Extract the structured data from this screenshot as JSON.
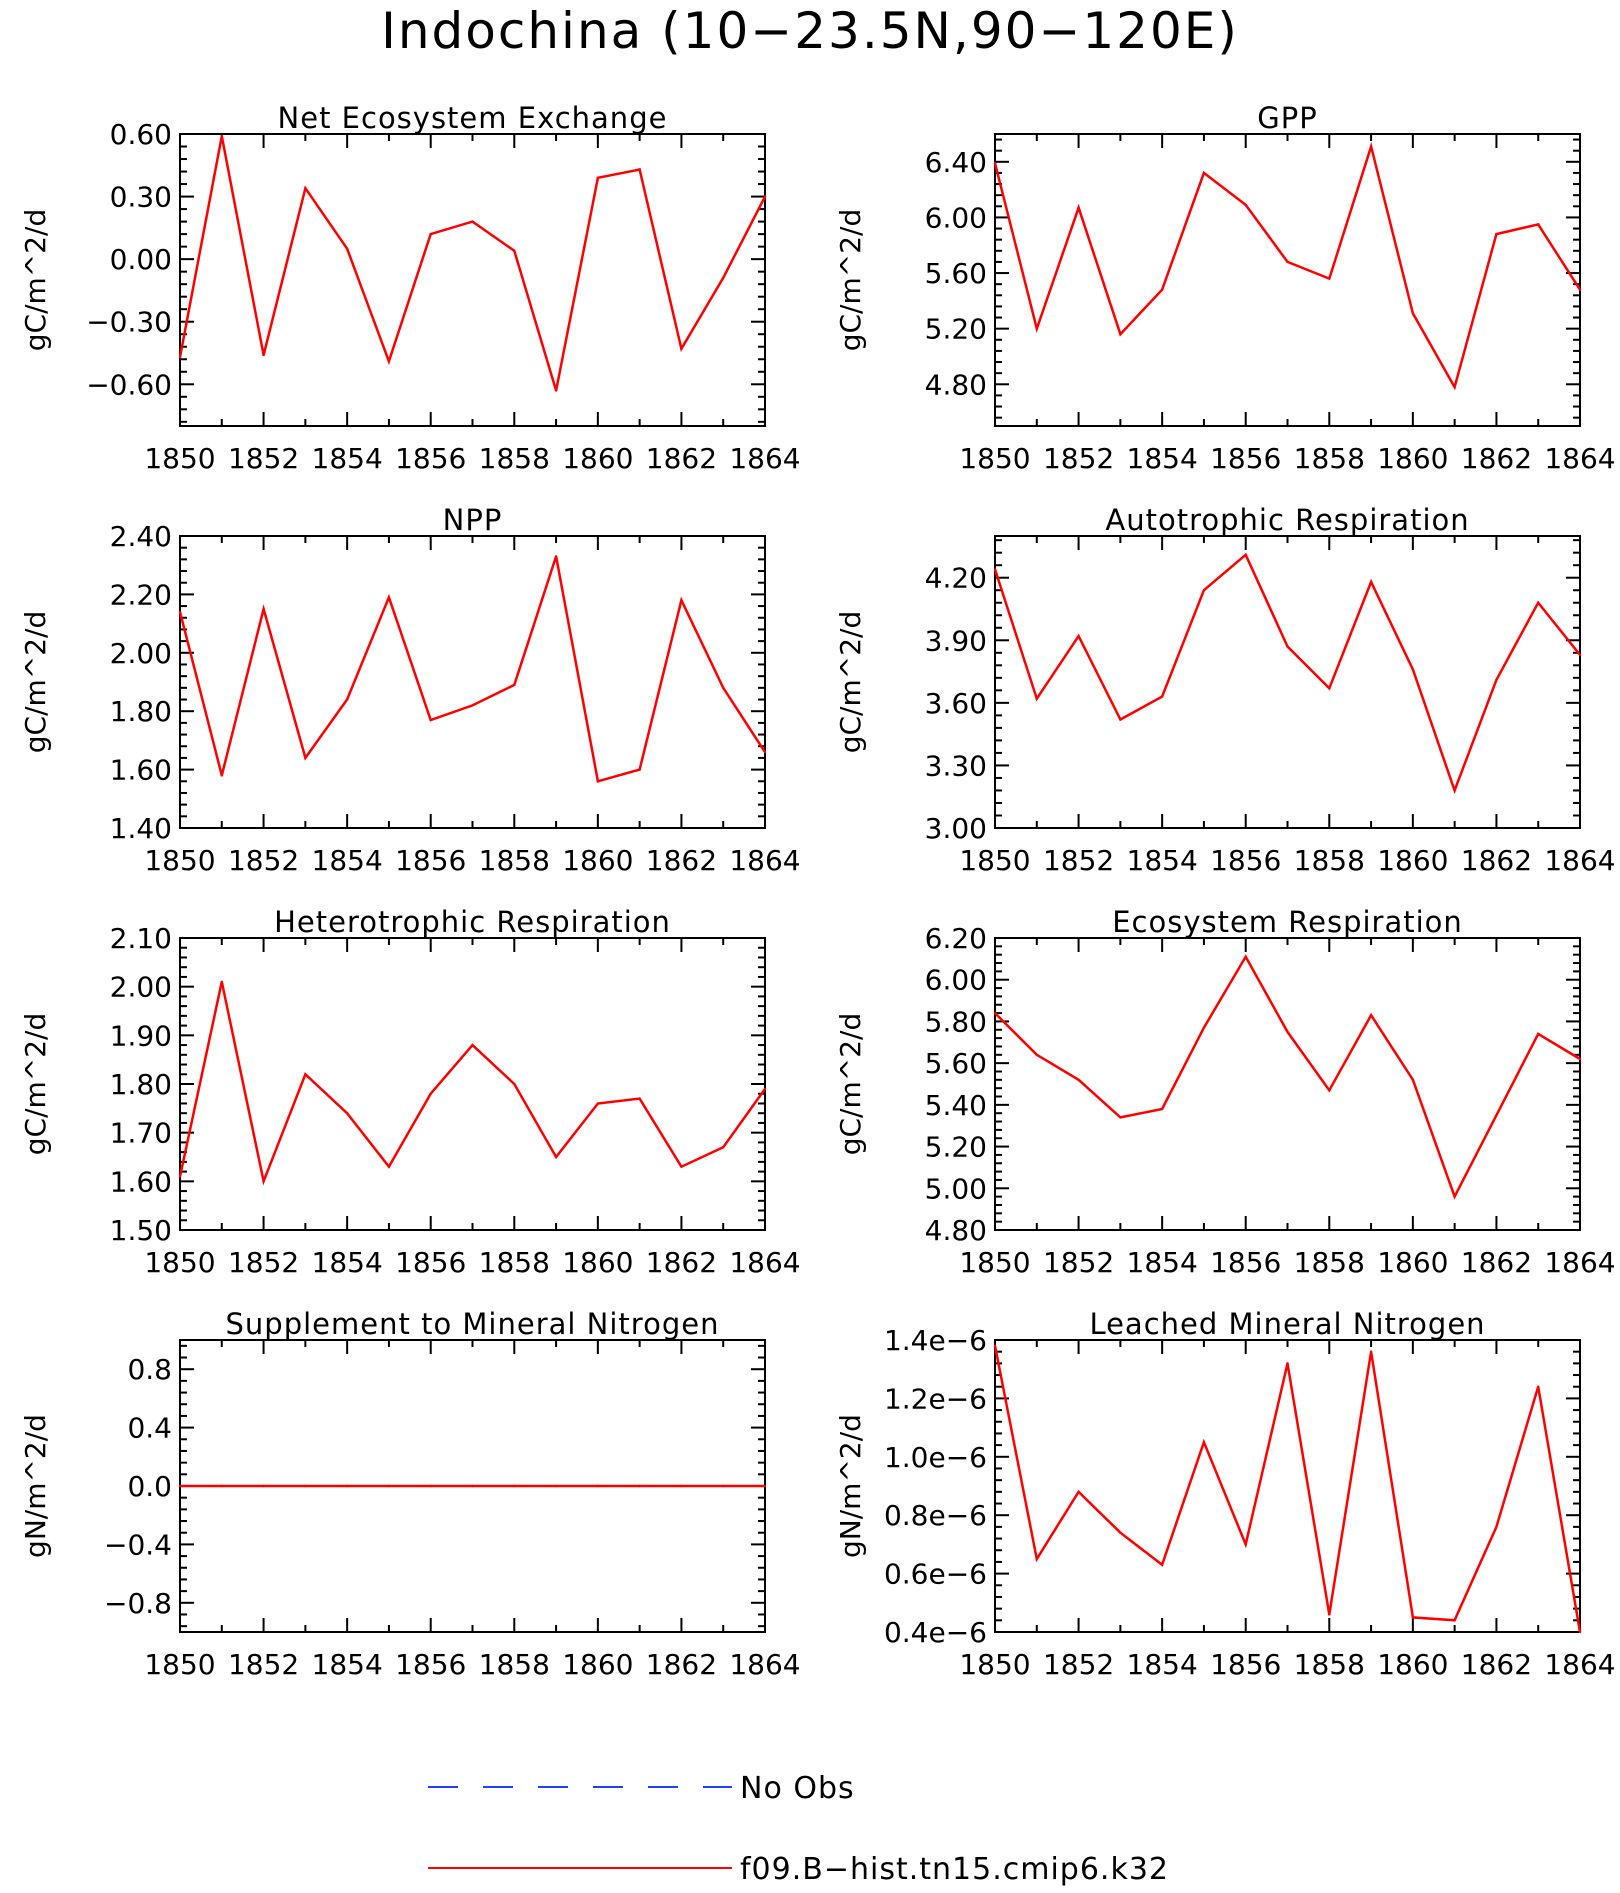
{
  "title": "Indochina (10−23.5N,90−120E)",
  "legend": {
    "entries": [
      {
        "label": "No Obs",
        "color": "#1f3fff",
        "style": "dashed"
      },
      {
        "label": "f09.B−hist.tn15.cmip6.k32",
        "color": "#ff0000",
        "style": "solid"
      }
    ]
  },
  "chart_data": [
    {
      "type": "line",
      "title": "Net Ecosystem Exchange",
      "ylabel": "gC/m^2/d",
      "xlabel": "",
      "x": [
        1850,
        1851,
        1852,
        1853,
        1854,
        1855,
        1856,
        1857,
        1858,
        1859,
        1860,
        1861,
        1862,
        1863,
        1864
      ],
      "xlim": [
        1850,
        1864
      ],
      "xtick_labels": [
        "1850",
        "1852",
        "1854",
        "1856",
        "1858",
        "1860",
        "1862",
        "1864"
      ],
      "ylim": [
        -0.8,
        0.6
      ],
      "yticks": [
        -0.6,
        -0.3,
        0.0,
        0.3,
        0.6
      ],
      "ytick_labels": [
        "−0.60",
        "−0.30",
        "0.00",
        "0.30",
        "0.60"
      ],
      "series": [
        {
          "name": "f09.B−hist.tn15.cmip6.k32",
          "color": "#ff0000",
          "values": [
            -0.47,
            0.59,
            -0.46,
            0.34,
            0.05,
            -0.49,
            0.12,
            0.18,
            0.04,
            -0.63,
            0.39,
            0.43,
            -0.43,
            -0.09,
            0.3
          ]
        }
      ]
    },
    {
      "type": "line",
      "title": "GPP",
      "ylabel": "gC/m^2/d",
      "xlabel": "",
      "x": [
        1850,
        1851,
        1852,
        1853,
        1854,
        1855,
        1856,
        1857,
        1858,
        1859,
        1860,
        1861,
        1862,
        1863,
        1864
      ],
      "xlim": [
        1850,
        1864
      ],
      "xtick_labels": [
        "1850",
        "1852",
        "1854",
        "1856",
        "1858",
        "1860",
        "1862",
        "1864"
      ],
      "ylim": [
        4.5,
        6.6
      ],
      "yticks": [
        4.8,
        5.2,
        5.6,
        6.0,
        6.4
      ],
      "ytick_labels": [
        "4.80",
        "5.20",
        "5.60",
        "6.00",
        "6.40"
      ],
      "series": [
        {
          "name": "f09.B−hist.tn15.cmip6.k32",
          "color": "#ff0000",
          "values": [
            6.39,
            5.2,
            6.07,
            5.16,
            5.48,
            6.32,
            6.09,
            5.68,
            5.56,
            6.51,
            5.31,
            4.78,
            5.88,
            5.95,
            5.48
          ]
        }
      ]
    },
    {
      "type": "line",
      "title": "NPP",
      "ylabel": "gC/m^2/d",
      "xlabel": "",
      "x": [
        1850,
        1851,
        1852,
        1853,
        1854,
        1855,
        1856,
        1857,
        1858,
        1859,
        1860,
        1861,
        1862,
        1863,
        1864
      ],
      "xlim": [
        1850,
        1864
      ],
      "xtick_labels": [
        "1850",
        "1852",
        "1854",
        "1856",
        "1858",
        "1860",
        "1862",
        "1864"
      ],
      "ylim": [
        1.4,
        2.4
      ],
      "yticks": [
        1.4,
        1.6,
        1.8,
        2.0,
        2.2,
        2.4
      ],
      "ytick_labels": [
        "1.40",
        "1.60",
        "1.80",
        "2.00",
        "2.20",
        "2.40"
      ],
      "series": [
        {
          "name": "f09.B−hist.tn15.cmip6.k32",
          "color": "#ff0000",
          "values": [
            2.14,
            1.58,
            2.15,
            1.64,
            1.84,
            2.19,
            1.77,
            1.82,
            1.89,
            2.33,
            1.56,
            1.6,
            2.18,
            1.88,
            1.66
          ]
        }
      ]
    },
    {
      "type": "line",
      "title": "Autotrophic Respiration",
      "ylabel": "gC/m^2/d",
      "xlabel": "",
      "x": [
        1850,
        1851,
        1852,
        1853,
        1854,
        1855,
        1856,
        1857,
        1858,
        1859,
        1860,
        1861,
        1862,
        1863,
        1864
      ],
      "xlim": [
        1850,
        1864
      ],
      "xtick_labels": [
        "1850",
        "1852",
        "1854",
        "1856",
        "1858",
        "1860",
        "1862",
        "1864"
      ],
      "ylim": [
        3.0,
        4.4
      ],
      "yticks": [
        3.0,
        3.3,
        3.6,
        3.9,
        4.2
      ],
      "ytick_labels": [
        "3.00",
        "3.30",
        "3.60",
        "3.90",
        "4.20"
      ],
      "series": [
        {
          "name": "f09.B−hist.tn15.cmip6.k32",
          "color": "#ff0000",
          "values": [
            4.24,
            3.62,
            3.92,
            3.52,
            3.63,
            4.14,
            4.31,
            3.87,
            3.67,
            4.18,
            3.76,
            3.18,
            3.71,
            4.08,
            3.83
          ]
        }
      ]
    },
    {
      "type": "line",
      "title": "Heterotrophic Respiration",
      "ylabel": "gC/m^2/d",
      "xlabel": "",
      "x": [
        1850,
        1851,
        1852,
        1853,
        1854,
        1855,
        1856,
        1857,
        1858,
        1859,
        1860,
        1861,
        1862,
        1863,
        1864
      ],
      "xlim": [
        1850,
        1864
      ],
      "xtick_labels": [
        "1850",
        "1852",
        "1854",
        "1856",
        "1858",
        "1860",
        "1862",
        "1864"
      ],
      "ylim": [
        1.5,
        2.1
      ],
      "yticks": [
        1.5,
        1.6,
        1.7,
        1.8,
        1.9,
        2.0,
        2.1
      ],
      "ytick_labels": [
        "1.50",
        "1.60",
        "1.70",
        "1.80",
        "1.90",
        "2.00",
        "2.10"
      ],
      "series": [
        {
          "name": "f09.B−hist.tn15.cmip6.k32",
          "color": "#ff0000",
          "values": [
            1.61,
            2.01,
            1.6,
            1.82,
            1.74,
            1.63,
            1.78,
            1.88,
            1.8,
            1.65,
            1.76,
            1.77,
            1.63,
            1.67,
            1.79
          ]
        }
      ]
    },
    {
      "type": "line",
      "title": "Ecosystem Respiration",
      "ylabel": "gC/m^2/d",
      "xlabel": "",
      "x": [
        1850,
        1851,
        1852,
        1853,
        1854,
        1855,
        1856,
        1857,
        1858,
        1859,
        1860,
        1861,
        1862,
        1863,
        1864
      ],
      "xlim": [
        1850,
        1864
      ],
      "xtick_labels": [
        "1850",
        "1852",
        "1854",
        "1856",
        "1858",
        "1860",
        "1862",
        "1864"
      ],
      "ylim": [
        4.8,
        6.2
      ],
      "yticks": [
        4.8,
        5.0,
        5.2,
        5.4,
        5.6,
        5.8,
        6.0,
        6.2
      ],
      "ytick_labels": [
        "4.80",
        "5.00",
        "5.20",
        "5.40",
        "5.60",
        "5.80",
        "6.00",
        "6.20"
      ],
      "series": [
        {
          "name": "f09.B−hist.tn15.cmip6.k32",
          "color": "#ff0000",
          "values": [
            5.84,
            5.64,
            5.52,
            5.34,
            5.38,
            5.77,
            6.11,
            5.75,
            5.47,
            5.83,
            5.52,
            4.96,
            5.35,
            5.74,
            5.62
          ]
        }
      ]
    },
    {
      "type": "line",
      "title": "Supplement to Mineral Nitrogen",
      "ylabel": "gN/m^2/d",
      "xlabel": "",
      "x": [
        1850,
        1851,
        1852,
        1853,
        1854,
        1855,
        1856,
        1857,
        1858,
        1859,
        1860,
        1861,
        1862,
        1863,
        1864
      ],
      "xlim": [
        1850,
        1864
      ],
      "xtick_labels": [
        "1850",
        "1852",
        "1854",
        "1856",
        "1858",
        "1860",
        "1862",
        "1864"
      ],
      "ylim": [
        -1.0,
        1.0
      ],
      "yticks": [
        -0.8,
        -0.4,
        0.0,
        0.4,
        0.8
      ],
      "ytick_labels": [
        "−0.8",
        "−0.4",
        "0.0",
        "0.4",
        "0.8"
      ],
      "series": [
        {
          "name": "f09.B−hist.tn15.cmip6.k32",
          "color": "#ff0000",
          "values": [
            0,
            0,
            0,
            0,
            0,
            0,
            0,
            0,
            0,
            0,
            0,
            0,
            0,
            0,
            0
          ]
        }
      ]
    },
    {
      "type": "line",
      "title": "Leached Mineral Nitrogen",
      "ylabel": "gN/m^2/d",
      "xlabel": "",
      "x": [
        1850,
        1851,
        1852,
        1853,
        1854,
        1855,
        1856,
        1857,
        1858,
        1859,
        1860,
        1861,
        1862,
        1863,
        1864
      ],
      "xlim": [
        1850,
        1864
      ],
      "xtick_labels": [
        "1850",
        "1852",
        "1854",
        "1856",
        "1858",
        "1860",
        "1862",
        "1864"
      ],
      "ylim": [
        4e-07,
        1.4e-06
      ],
      "yticks": [
        4e-07,
        6e-07,
        8e-07,
        1e-06,
        1.2e-06,
        1.4e-06
      ],
      "ytick_labels": [
        "0.4e−6",
        "0.6e−6",
        "0.8e−6",
        "1.0e−6",
        "1.2e−6",
        "1.4e−6"
      ],
      "series": [
        {
          "name": "f09.B−hist.tn15.cmip6.k32",
          "color": "#ff0000",
          "values": [
            1.38e-06,
            6.5e-07,
            8.8e-07,
            7.4e-07,
            6.3e-07,
            1.05e-06,
            7e-07,
            1.32e-06,
            4.6e-07,
            1.36e-06,
            4.5e-07,
            4.4e-07,
            7.6e-07,
            1.24e-06,
            4e-07
          ]
        }
      ]
    }
  ]
}
